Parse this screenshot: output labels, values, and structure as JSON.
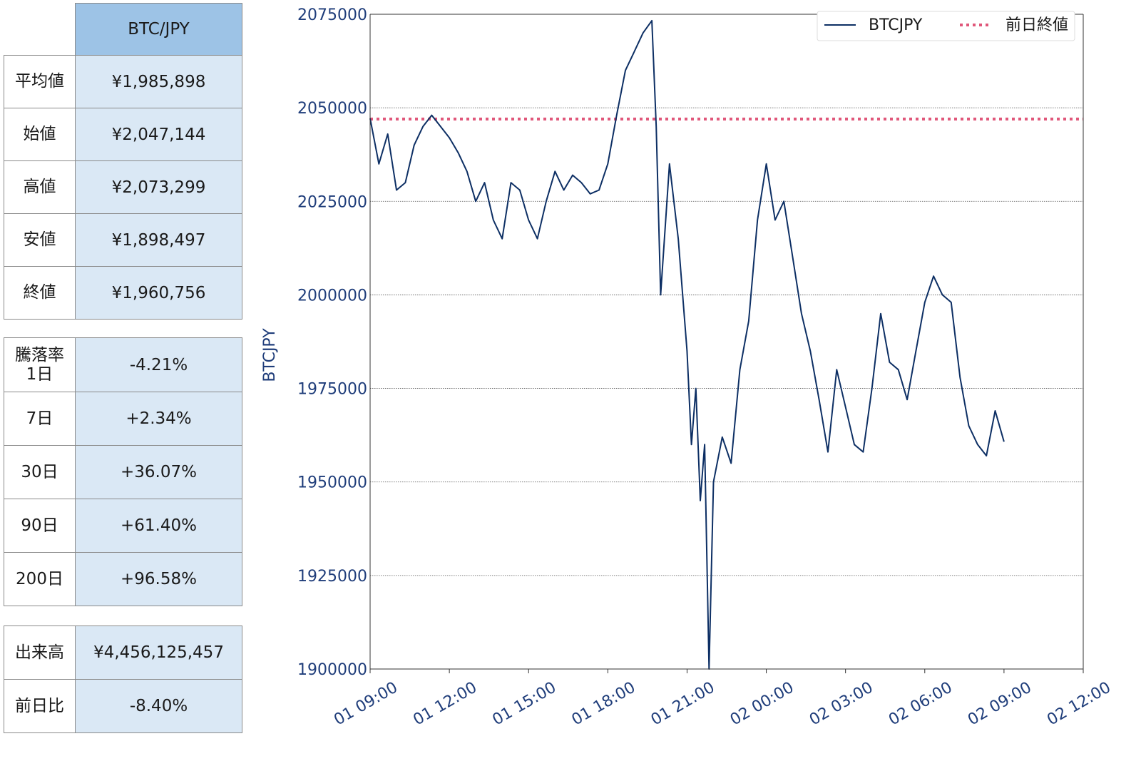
{
  "table_price": {
    "header": "BTC/JPY",
    "rows": [
      {
        "label": "平均値",
        "value": "¥1,985,898"
      },
      {
        "label": "始値",
        "value": "¥2,047,144"
      },
      {
        "label": "高値",
        "value": "¥2,073,299"
      },
      {
        "label": "安値",
        "value": "¥1,898,497"
      },
      {
        "label": "終値",
        "value": "¥1,960,756"
      }
    ]
  },
  "table_change": {
    "rows": [
      {
        "label": "騰落率\n1日",
        "value": "-4.21%"
      },
      {
        "label": "7日",
        "value": "+2.34%"
      },
      {
        "label": "30日",
        "value": "+36.07%"
      },
      {
        "label": "90日",
        "value": "+61.40%"
      },
      {
        "label": "200日",
        "value": "+96.58%"
      }
    ]
  },
  "table_volume": {
    "rows": [
      {
        "label": "出来高",
        "value": "¥4,456,125,457"
      },
      {
        "label": "前日比",
        "value": "-8.40%"
      }
    ]
  },
  "colors": {
    "line": "#0d2f64",
    "reference": "#e0577a",
    "axis_text": "#1f3d7a",
    "grid": "#555555"
  },
  "chart_data": {
    "type": "line",
    "ylabel": "BTCJPY",
    "xlabel": "",
    "ylim": [
      1900000,
      2075000
    ],
    "yticks": [
      1900000,
      1925000,
      1950000,
      1975000,
      2000000,
      2025000,
      2050000,
      2075000
    ],
    "xlim": [
      "01 09:00",
      "02 12:00"
    ],
    "xticks": [
      "01 09:00",
      "01 12:00",
      "01 15:00",
      "01 18:00",
      "01 21:00",
      "02 00:00",
      "02 03:00",
      "02 06:00",
      "02 09:00",
      "02 12:00"
    ],
    "grid": "horizontal",
    "legend_position": "top-right",
    "legend": [
      "BTCJPY",
      "前日終値"
    ],
    "reference_line": {
      "name": "前日終値",
      "value": 2047000
    },
    "series": [
      {
        "name": "BTCJPY",
        "x": [
          "01 09:00",
          "01 09:20",
          "01 09:40",
          "01 10:00",
          "01 10:20",
          "01 10:40",
          "01 11:00",
          "01 11:20",
          "01 11:40",
          "01 12:00",
          "01 12:20",
          "01 12:40",
          "01 13:00",
          "01 13:20",
          "01 13:40",
          "01 14:00",
          "01 14:20",
          "01 14:40",
          "01 15:00",
          "01 15:20",
          "01 15:40",
          "01 16:00",
          "01 16:20",
          "01 16:40",
          "01 17:00",
          "01 17:20",
          "01 17:40",
          "01 18:00",
          "01 18:20",
          "01 18:40",
          "01 19:00",
          "01 19:20",
          "01 19:40",
          "01 19:50",
          "01 20:00",
          "01 20:20",
          "01 20:40",
          "01 21:00",
          "01 21:10",
          "01 21:20",
          "01 21:30",
          "01 21:40",
          "01 21:50",
          "01 22:00",
          "01 22:20",
          "01 22:40",
          "01 23:00",
          "01 23:20",
          "01 23:40",
          "02 00:00",
          "02 00:20",
          "02 00:40",
          "02 01:00",
          "02 01:20",
          "02 01:40",
          "02 02:00",
          "02 02:20",
          "02 02:40",
          "02 03:00",
          "02 03:20",
          "02 03:40",
          "02 04:00",
          "02 04:20",
          "02 04:40",
          "02 05:00",
          "02 05:20",
          "02 05:40",
          "02 06:00",
          "02 06:20",
          "02 06:40",
          "02 07:00",
          "02 07:20",
          "02 07:40",
          "02 08:00",
          "02 08:20",
          "02 08:40",
          "02 09:00"
        ],
        "values": [
          2047144,
          2035000,
          2043000,
          2028000,
          2030000,
          2040000,
          2045000,
          2048000,
          2045000,
          2042000,
          2038000,
          2033000,
          2025000,
          2030000,
          2020000,
          2015000,
          2030000,
          2028000,
          2020000,
          2015000,
          2025000,
          2033000,
          2028000,
          2032000,
          2030000,
          2027000,
          2028000,
          2035000,
          2048000,
          2060000,
          2065000,
          2070000,
          2073299,
          2045000,
          2000000,
          2035000,
          2015000,
          1985000,
          1960000,
          1975000,
          1945000,
          1960000,
          1900000,
          1950000,
          1962000,
          1955000,
          1980000,
          1993000,
          2020000,
          2035000,
          2020000,
          2025000,
          2010000,
          1995000,
          1985000,
          1972000,
          1958000,
          1980000,
          1970000,
          1960000,
          1958000,
          1975000,
          1995000,
          1982000,
          1980000,
          1972000,
          1985000,
          1998000,
          2005000,
          2000000,
          1998000,
          1978000,
          1965000,
          1960000,
          1957000,
          1969000,
          1960756
        ]
      }
    ]
  }
}
